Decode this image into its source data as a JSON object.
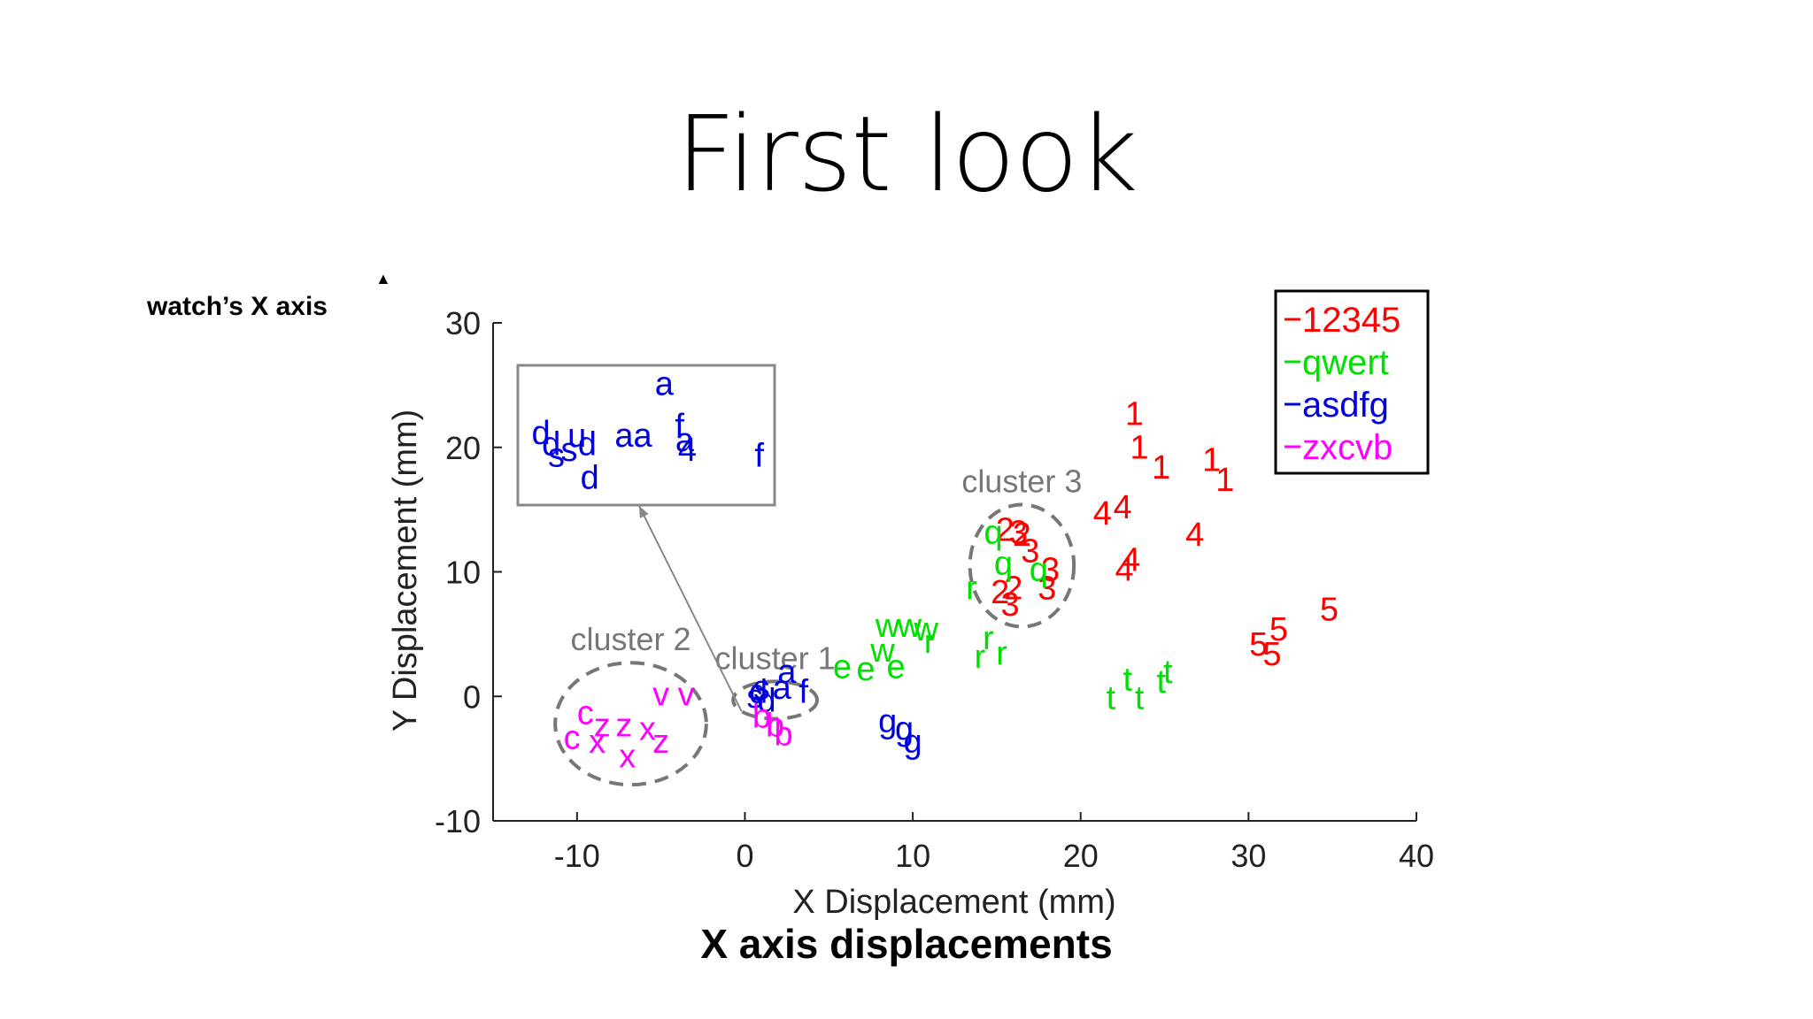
{
  "slide": {
    "title": "First look",
    "side_label": "watch’s X axis",
    "caption": "X axis displacements"
  },
  "chart_data": {
    "type": "scatter",
    "xlabel": "X Displacement (mm)",
    "ylabel": "Y Displacement (mm)",
    "xlim": [
      -15,
      40
    ],
    "ylim": [
      -10,
      30
    ],
    "xticks": [
      -10,
      0,
      10,
      20,
      30,
      40
    ],
    "yticks": [
      -10,
      0,
      10,
      20,
      30
    ],
    "legend_position": "top-right",
    "series": [
      {
        "name": "12345",
        "color": "#ff0000",
        "points": [
          {
            "x": 23.2,
            "y": 22.5,
            "label": "1"
          },
          {
            "x": 23.5,
            "y": 19.8,
            "label": "1"
          },
          {
            "x": 24.8,
            "y": 18.2,
            "label": "1"
          },
          {
            "x": 27.8,
            "y": 18.8,
            "label": "1"
          },
          {
            "x": 28.6,
            "y": 17.2,
            "label": "1"
          },
          {
            "x": 15.5,
            "y": 13.2,
            "label": "2"
          },
          {
            "x": 16.5,
            "y": 12.8,
            "label": "2"
          },
          {
            "x": 16.0,
            "y": 8.5,
            "label": "2"
          },
          {
            "x": 15.2,
            "y": 8.2,
            "label": "2"
          },
          {
            "x": 16.3,
            "y": 13.0,
            "label": "3"
          },
          {
            "x": 17.0,
            "y": 11.5,
            "label": "3"
          },
          {
            "x": 18.2,
            "y": 10.0,
            "label": "3"
          },
          {
            "x": 18.0,
            "y": 8.5,
            "label": "3"
          },
          {
            "x": 15.8,
            "y": 7.2,
            "label": "3"
          },
          {
            "x": 21.3,
            "y": 14.5,
            "label": "4"
          },
          {
            "x": 22.5,
            "y": 15.0,
            "label": "4"
          },
          {
            "x": 26.8,
            "y": 12.8,
            "label": "4"
          },
          {
            "x": 22.6,
            "y": 10.0,
            "label": "4"
          },
          {
            "x": 23.0,
            "y": 10.8,
            "label": "4"
          },
          {
            "x": 34.8,
            "y": 6.8,
            "label": "5"
          },
          {
            "x": 31.8,
            "y": 5.2,
            "label": "5"
          },
          {
            "x": 30.6,
            "y": 4.0,
            "label": "5"
          },
          {
            "x": 31.4,
            "y": 3.2,
            "label": "5"
          }
        ]
      },
      {
        "name": "qwert",
        "color": "#00e000",
        "points": [
          {
            "x": 14.8,
            "y": 13.0,
            "label": "q"
          },
          {
            "x": 15.4,
            "y": 10.5,
            "label": "q"
          },
          {
            "x": 17.5,
            "y": 10.0,
            "label": "q"
          },
          {
            "x": 8.5,
            "y": 5.5,
            "label": "w"
          },
          {
            "x": 9.8,
            "y": 5.5,
            "label": "w"
          },
          {
            "x": 8.2,
            "y": 3.5,
            "label": "w"
          },
          {
            "x": 10.8,
            "y": 5.2,
            "label": "w"
          },
          {
            "x": 5.8,
            "y": 2.2,
            "label": "e"
          },
          {
            "x": 7.2,
            "y": 2.0,
            "label": "e"
          },
          {
            "x": 9.0,
            "y": 2.2,
            "label": "e"
          },
          {
            "x": 13.5,
            "y": 8.5,
            "label": "r"
          },
          {
            "x": 14.5,
            "y": 4.5,
            "label": "r"
          },
          {
            "x": 14.0,
            "y": 3.0,
            "label": "r"
          },
          {
            "x": 15.3,
            "y": 3.3,
            "label": "r"
          },
          {
            "x": 11.0,
            "y": 4.2,
            "label": "r"
          },
          {
            "x": 21.8,
            "y": -0.3,
            "label": "t"
          },
          {
            "x": 22.8,
            "y": 1.2,
            "label": "t"
          },
          {
            "x": 23.5,
            "y": -0.3,
            "label": "t"
          },
          {
            "x": 24.8,
            "y": 1.0,
            "label": "t"
          },
          {
            "x": 25.2,
            "y": 1.8,
            "label": "t"
          }
        ]
      },
      {
        "name": "asdfg",
        "color": "#0000dd",
        "points": [
          {
            "x": 2.5,
            "y": 1.8,
            "label": "a"
          },
          {
            "x": 2.2,
            "y": 0.5,
            "label": "a"
          },
          {
            "x": 1.0,
            "y": 0.5,
            "label": "s"
          },
          {
            "x": 0.6,
            "y": -0.2,
            "label": "s"
          },
          {
            "x": 0.8,
            "y": 0.2,
            "label": "d"
          },
          {
            "x": 1.3,
            "y": -0.5,
            "label": "d"
          },
          {
            "x": 3.5,
            "y": 0.2,
            "label": "f"
          },
          {
            "x": 8.5,
            "y": -2.2,
            "label": "g"
          },
          {
            "x": 9.5,
            "y": -2.8,
            "label": "g"
          },
          {
            "x": 10.0,
            "y": -3.8,
            "label": "g"
          }
        ]
      },
      {
        "name": "zxcvb",
        "color": "#ff00ff",
        "points": [
          {
            "x": -9.5,
            "y": -1.5,
            "label": "c"
          },
          {
            "x": -10.3,
            "y": -3.5,
            "label": "c"
          },
          {
            "x": -8.5,
            "y": -2.5,
            "label": "z"
          },
          {
            "x": -7.2,
            "y": -2.5,
            "label": "z"
          },
          {
            "x": -5.0,
            "y": -3.8,
            "label": "z"
          },
          {
            "x": -8.8,
            "y": -3.8,
            "label": "x"
          },
          {
            "x": -7.0,
            "y": -5.0,
            "label": "x"
          },
          {
            "x": -5.8,
            "y": -2.8,
            "label": "x"
          },
          {
            "x": -5.0,
            "y": 0.0,
            "label": "v"
          },
          {
            "x": -3.5,
            "y": 0.0,
            "label": "v"
          },
          {
            "x": 1.0,
            "y": -1.8,
            "label": "b"
          },
          {
            "x": 1.8,
            "y": -2.5,
            "label": "b"
          },
          {
            "x": 2.3,
            "y": -3.2,
            "label": "b"
          }
        ]
      }
    ],
    "clusters": [
      {
        "label": "cluster 1",
        "cx": 1.8,
        "cy": -0.3,
        "rx": 5.0,
        "ry": 3.0
      },
      {
        "label": "cluster 2",
        "cx": -6.8,
        "cy": -2.2,
        "rx": 9.0,
        "ry": 9.8
      },
      {
        "label": "cluster 3",
        "cx": 16.5,
        "cy": 10.5,
        "rx": 6.2,
        "ry": 9.8
      }
    ],
    "inset": {
      "points": [
        {
          "label": "a",
          "x": 0.57,
          "y": 0.15
        },
        {
          "label": "d",
          "x": 0.09,
          "y": 0.5
        },
        {
          "label": "u",
          "x": 0.23,
          "y": 0.52
        },
        {
          "label": "aa",
          "x": 0.45,
          "y": 0.52
        },
        {
          "label": "f",
          "x": 0.63,
          "y": 0.45
        },
        {
          "label": "a",
          "x": 0.65,
          "y": 0.55
        },
        {
          "label": "d",
          "x": 0.13,
          "y": 0.58
        },
        {
          "label": "s",
          "x": 0.15,
          "y": 0.66
        },
        {
          "label": "s",
          "x": 0.2,
          "y": 0.62
        },
        {
          "label": "d",
          "x": 0.27,
          "y": 0.58
        },
        {
          "label": "d",
          "x": 0.28,
          "y": 0.82
        },
        {
          "label": "4",
          "x": 0.66,
          "y": 0.62
        },
        {
          "label": "f",
          "x": 0.94,
          "y": 0.66
        }
      ]
    }
  }
}
